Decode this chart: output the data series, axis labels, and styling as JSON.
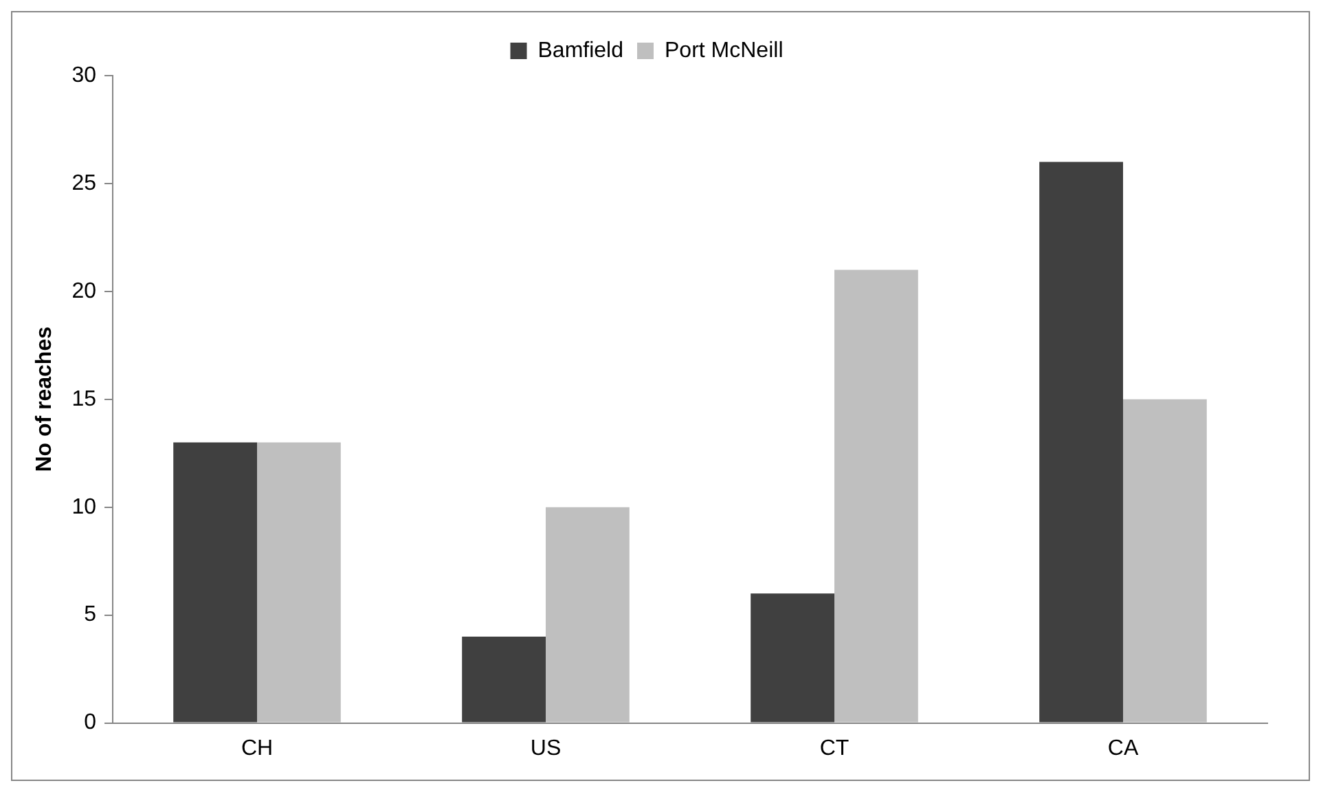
{
  "chart_data": {
    "type": "bar",
    "ylabel": "No of reaches",
    "categories": [
      "CH",
      "US",
      "CT",
      "CA"
    ],
    "series": [
      {
        "name": "Bamfield",
        "color": "#404040",
        "values": [
          13,
          4,
          6,
          26
        ]
      },
      {
        "name": "Port McNeill",
        "color": "#bfbfbf",
        "values": [
          13,
          10,
          21,
          15
        ]
      }
    ],
    "ylim": [
      0,
      30
    ],
    "yticks": [
      0,
      5,
      10,
      15,
      20,
      25,
      30
    ],
    "grid": false,
    "legend": "top"
  }
}
